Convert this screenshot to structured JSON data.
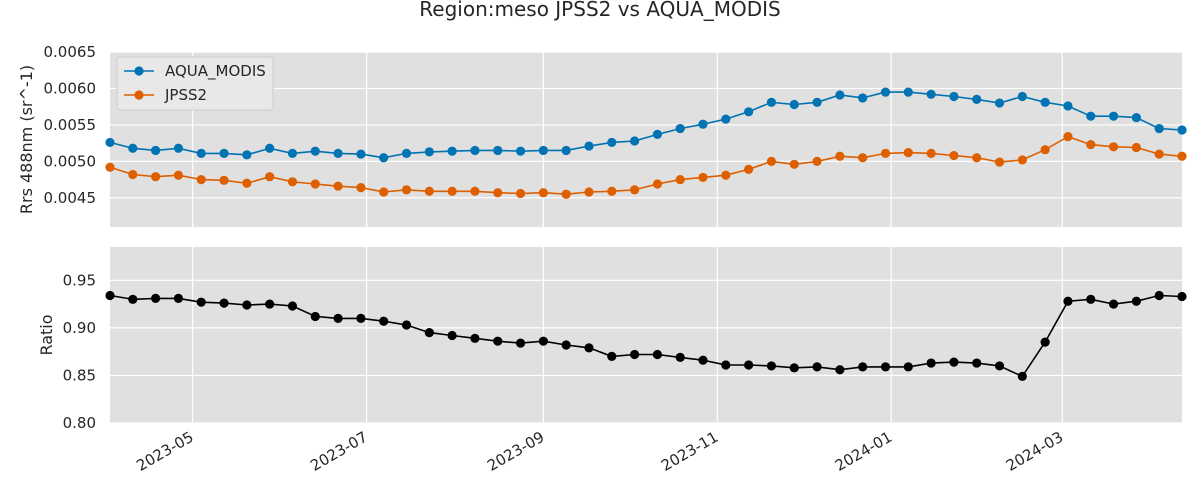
{
  "chart_data": {
    "type": "line",
    "title": "Region:meso JPSS2 vs AQUA_MODIS",
    "x_tick_labels": [
      "2023-05",
      "2023-07",
      "2023-09",
      "2023-11",
      "2024-01",
      "2024-03"
    ],
    "x": [
      "2023-04-02",
      "2023-04-10",
      "2023-04-18",
      "2023-04-26",
      "2023-05-04",
      "2023-05-12",
      "2023-05-20",
      "2023-05-28",
      "2023-06-05",
      "2023-06-13",
      "2023-06-21",
      "2023-06-29",
      "2023-07-07",
      "2023-07-15",
      "2023-07-23",
      "2023-07-31",
      "2023-08-08",
      "2023-08-16",
      "2023-08-24",
      "2023-09-01",
      "2023-09-09",
      "2023-09-17",
      "2023-09-25",
      "2023-10-03",
      "2023-10-11",
      "2023-10-19",
      "2023-10-27",
      "2023-11-04",
      "2023-11-12",
      "2023-11-20",
      "2023-11-28",
      "2023-12-06",
      "2023-12-14",
      "2023-12-22",
      "2023-12-30",
      "2024-01-07",
      "2024-01-15",
      "2024-01-23",
      "2024-01-31",
      "2024-02-08",
      "2024-02-16",
      "2024-02-24",
      "2024-03-03",
      "2024-03-11",
      "2024-03-19",
      "2024-03-27",
      "2024-04-04",
      "2024-04-12"
    ],
    "panels": [
      {
        "ylabel": "Rrs 488nm (sr^-1)",
        "ylim": [
          0.0041,
          0.0065
        ],
        "y_tick_values": [
          0.0045,
          0.005,
          0.0055,
          0.006,
          0.0065
        ],
        "y_tick_labels": [
          "0.0045",
          "0.0050",
          "0.0055",
          "0.0060",
          "0.0065"
        ],
        "legend": "top-left",
        "series": [
          {
            "name": "AQUA_MODIS",
            "color": "#0173b2",
            "values": [
              0.00526,
              0.00518,
              0.00515,
              0.00518,
              0.00511,
              0.00511,
              0.00509,
              0.00518,
              0.00511,
              0.00514,
              0.00511,
              0.0051,
              0.00505,
              0.00511,
              0.00513,
              0.00514,
              0.00515,
              0.00515,
              0.00514,
              0.00515,
              0.00515,
              0.00521,
              0.00526,
              0.00528,
              0.00537,
              0.00545,
              0.00551,
              0.00558,
              0.00568,
              0.00581,
              0.00578,
              0.00581,
              0.00591,
              0.00587,
              0.00595,
              0.00595,
              0.00592,
              0.00589,
              0.00585,
              0.0058,
              0.00589,
              0.00581,
              0.00576,
              0.00562,
              0.00562,
              0.0056,
              0.00545,
              0.00543
            ]
          },
          {
            "name": "JPSS2",
            "color": "#de5f00",
            "values": [
              0.00492,
              0.00482,
              0.00479,
              0.00481,
              0.00475,
              0.00474,
              0.0047,
              0.00479,
              0.00472,
              0.00469,
              0.00466,
              0.00464,
              0.00458,
              0.00461,
              0.00459,
              0.00459,
              0.00459,
              0.00457,
              0.00456,
              0.00457,
              0.00455,
              0.00458,
              0.00459,
              0.00461,
              0.00469,
              0.00475,
              0.00478,
              0.00481,
              0.00489,
              0.005,
              0.00496,
              0.005,
              0.00507,
              0.00505,
              0.00511,
              0.00512,
              0.00511,
              0.00508,
              0.00505,
              0.00499,
              0.00502,
              0.00516,
              0.00534,
              0.00523,
              0.0052,
              0.00519,
              0.0051,
              0.00507
            ]
          }
        ]
      },
      {
        "ylabel": "Ratio",
        "ylim": [
          0.8,
          0.985
        ],
        "y_tick_values": [
          0.8,
          0.85,
          0.9,
          0.95
        ],
        "y_tick_labels": [
          "0.80",
          "0.85",
          "0.90",
          "0.95"
        ],
        "series": [
          {
            "color": "#000000",
            "values": [
              0.934,
              0.93,
              0.931,
              0.931,
              0.927,
              0.926,
              0.924,
              0.925,
              0.923,
              0.912,
              0.91,
              0.91,
              0.907,
              0.903,
              0.895,
              0.892,
              0.889,
              0.886,
              0.884,
              0.886,
              0.882,
              0.879,
              0.87,
              0.872,
              0.872,
              0.869,
              0.866,
              0.861,
              0.861,
              0.86,
              0.858,
              0.859,
              0.856,
              0.859,
              0.859,
              0.859,
              0.863,
              0.864,
              0.863,
              0.86,
              0.849,
              0.885,
              0.928,
              0.93,
              0.925,
              0.928,
              0.934,
              0.933
            ]
          }
        ]
      }
    ],
    "grid": true,
    "background": "#e0e0e0"
  }
}
